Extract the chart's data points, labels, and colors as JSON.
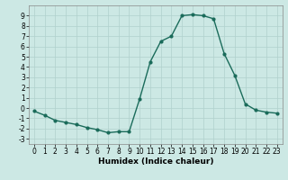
{
  "x": [
    0,
    1,
    2,
    3,
    4,
    5,
    6,
    7,
    8,
    9,
    10,
    11,
    12,
    13,
    14,
    15,
    16,
    17,
    18,
    19,
    20,
    21,
    22,
    23
  ],
  "y": [
    -0.3,
    -0.7,
    -1.2,
    -1.4,
    -1.6,
    -1.9,
    -2.1,
    -2.4,
    -2.3,
    -2.3,
    0.9,
    4.5,
    6.5,
    7.0,
    9.0,
    9.1,
    9.0,
    8.7,
    5.3,
    3.2,
    0.4,
    -0.2,
    -0.4,
    -0.5
  ],
  "line_color": "#1a6b5a",
  "marker": "o",
  "marker_size": 2,
  "bg_color": "#cce8e4",
  "grid_color": "#b0d0cc",
  "xlabel": "Humidex (Indice chaleur)",
  "xlim": [
    -0.5,
    23.5
  ],
  "ylim": [
    -3.5,
    10.0
  ],
  "yticks": [
    -3,
    -2,
    -1,
    0,
    1,
    2,
    3,
    4,
    5,
    6,
    7,
    8,
    9
  ],
  "xticks": [
    0,
    1,
    2,
    3,
    4,
    5,
    6,
    7,
    8,
    9,
    10,
    11,
    12,
    13,
    14,
    15,
    16,
    17,
    18,
    19,
    20,
    21,
    22,
    23
  ],
  "tick_fontsize": 5.5,
  "label_fontsize": 6.5
}
